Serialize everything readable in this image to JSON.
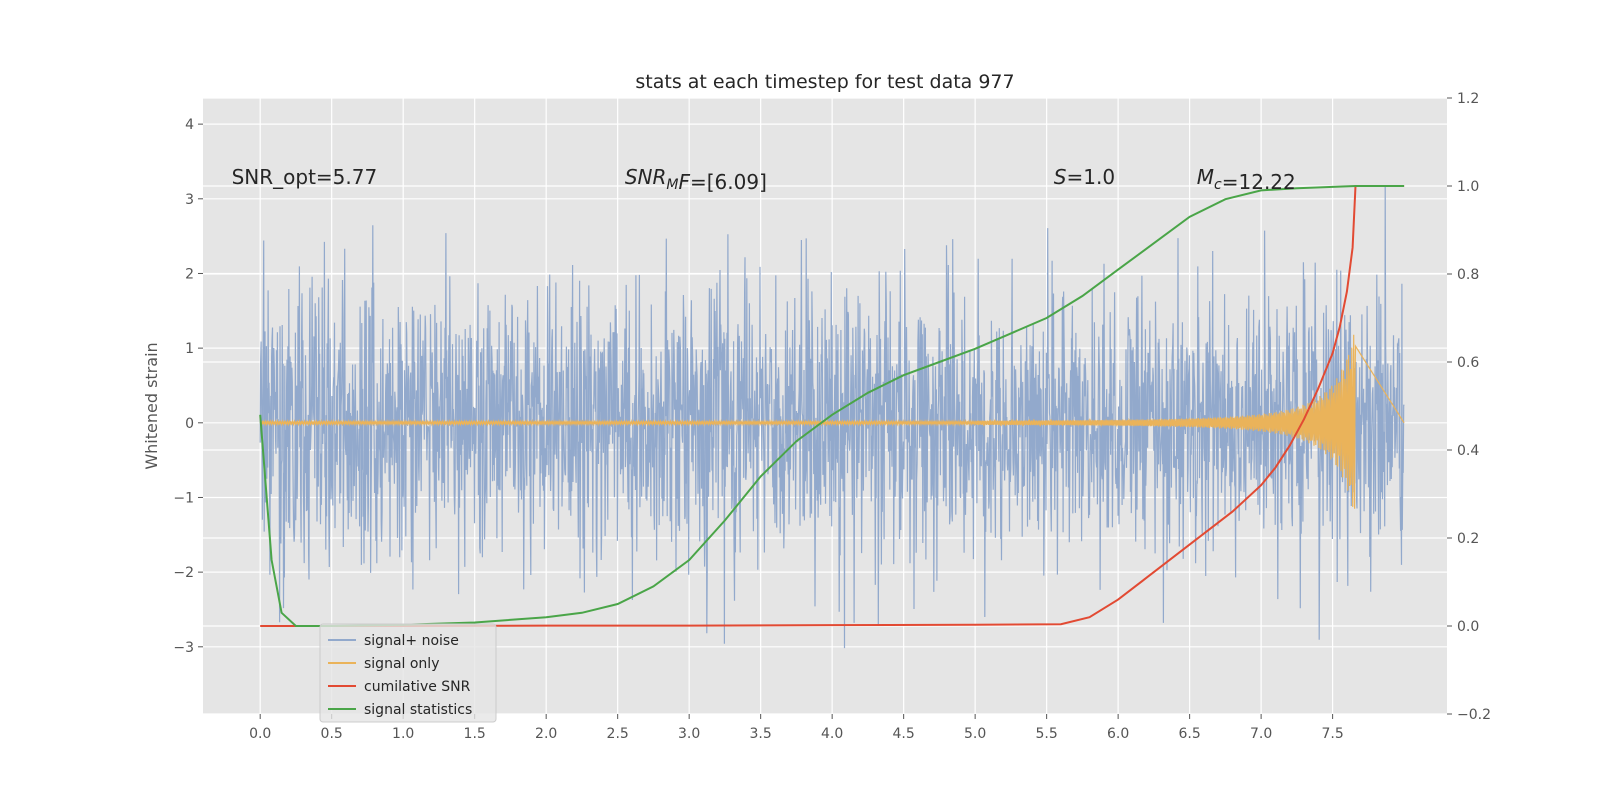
{
  "chart_data": {
    "type": "line",
    "title": "stats at each timestep for test data 977",
    "ylabel": "Whitened strain",
    "xlim": [
      -0.4,
      8.3
    ],
    "ylim": [
      -3.9,
      4.35
    ],
    "y2lim": [
      -0.2,
      1.2
    ],
    "x_ticks": [
      0.0,
      0.5,
      1.0,
      1.5,
      2.0,
      2.5,
      3.0,
      3.5,
      4.0,
      4.5,
      5.0,
      5.5,
      6.0,
      6.5,
      7.0,
      7.5
    ],
    "x_tick_labels": [
      "0.0",
      "0.5",
      "1.0",
      "1.5",
      "2.0",
      "2.5",
      "3.0",
      "3.5",
      "4.0",
      "4.5",
      "5.0",
      "5.5",
      "6.0",
      "6.5",
      "7.0",
      "7.5"
    ],
    "y_ticks": [
      -3,
      -2,
      -1,
      0,
      1,
      2,
      3,
      4
    ],
    "y_tick_labels": [
      "−3",
      "−2",
      "−1",
      "0",
      "1",
      "2",
      "3",
      "4"
    ],
    "y2_ticks": [
      -0.2,
      0.0,
      0.2,
      0.4,
      0.6,
      0.8,
      1.0,
      1.2
    ],
    "y2_tick_labels": [
      "−0.2",
      "0.0",
      "0.2",
      "0.4",
      "0.6",
      "0.8",
      "1.0",
      "1.2"
    ],
    "grid": true,
    "legend_position": "lower-left",
    "annotations": [
      {
        "x": -0.2,
        "y": 3.2,
        "parts": [
          {
            "t": "SNR_opt=5.77",
            "s": "normal"
          }
        ]
      },
      {
        "x": 2.55,
        "y": 3.2,
        "parts": [
          {
            "t": "SNR",
            "s": "italic"
          },
          {
            "t": "M",
            "s": "sub"
          },
          {
            "t": "F",
            "s": "italic"
          },
          {
            "t": "=[6.09]",
            "s": "normal"
          }
        ]
      },
      {
        "x": 5.55,
        "y": 3.2,
        "parts": [
          {
            "t": "S",
            "s": "italic"
          },
          {
            "t": "=1.0",
            "s": "normal"
          }
        ]
      },
      {
        "x": 6.55,
        "y": 3.2,
        "parts": [
          {
            "t": "M",
            "s": "italic"
          },
          {
            "t": "c",
            "s": "sub"
          },
          {
            "t": "=12.22",
            "s": "normal"
          }
        ]
      }
    ],
    "series": [
      {
        "name": "signal+ noise",
        "color": "#92a9cc",
        "axis": "left",
        "kind": "noise",
        "x_range": [
          0.0,
          8.0
        ],
        "std": 0.9
      },
      {
        "name": "signal only",
        "color": "#eab35a",
        "axis": "left",
        "kind": "chirp",
        "x_range": [
          0.0,
          7.66
        ],
        "amp_start": 0.02,
        "amp_end": 1.3
      },
      {
        "name": "cumilative SNR",
        "color": "#e24a33",
        "axis": "right",
        "x": [
          0.0,
          1.0,
          2.0,
          3.0,
          4.0,
          5.0,
          5.6,
          5.8,
          6.0,
          6.2,
          6.4,
          6.6,
          6.8,
          7.0,
          7.1,
          7.2,
          7.3,
          7.4,
          7.5,
          7.55,
          7.6,
          7.64,
          7.66,
          8.0
        ],
        "y": [
          0.0,
          0.0,
          0.001,
          0.001,
          0.002,
          0.003,
          0.004,
          0.02,
          0.06,
          0.11,
          0.16,
          0.21,
          0.26,
          0.32,
          0.36,
          0.41,
          0.47,
          0.54,
          0.62,
          0.68,
          0.76,
          0.86,
          1.0,
          1.0
        ]
      },
      {
        "name": "signal statistics",
        "color": "#4aa548",
        "axis": "right",
        "x": [
          0.0,
          0.08,
          0.15,
          0.25,
          0.5,
          1.0,
          1.5,
          2.0,
          2.25,
          2.5,
          2.75,
          3.0,
          3.25,
          3.5,
          3.75,
          4.0,
          4.25,
          4.5,
          4.75,
          5.0,
          5.25,
          5.5,
          5.75,
          6.0,
          6.25,
          6.5,
          6.75,
          7.0,
          7.25,
          7.5,
          7.66,
          8.0
        ],
        "y": [
          0.48,
          0.15,
          0.03,
          0.0,
          0.0,
          0.003,
          0.008,
          0.02,
          0.03,
          0.05,
          0.09,
          0.15,
          0.24,
          0.34,
          0.42,
          0.48,
          0.53,
          0.57,
          0.6,
          0.63,
          0.665,
          0.7,
          0.75,
          0.81,
          0.87,
          0.93,
          0.97,
          0.99,
          0.995,
          0.998,
          1.0,
          1.0
        ]
      }
    ]
  }
}
